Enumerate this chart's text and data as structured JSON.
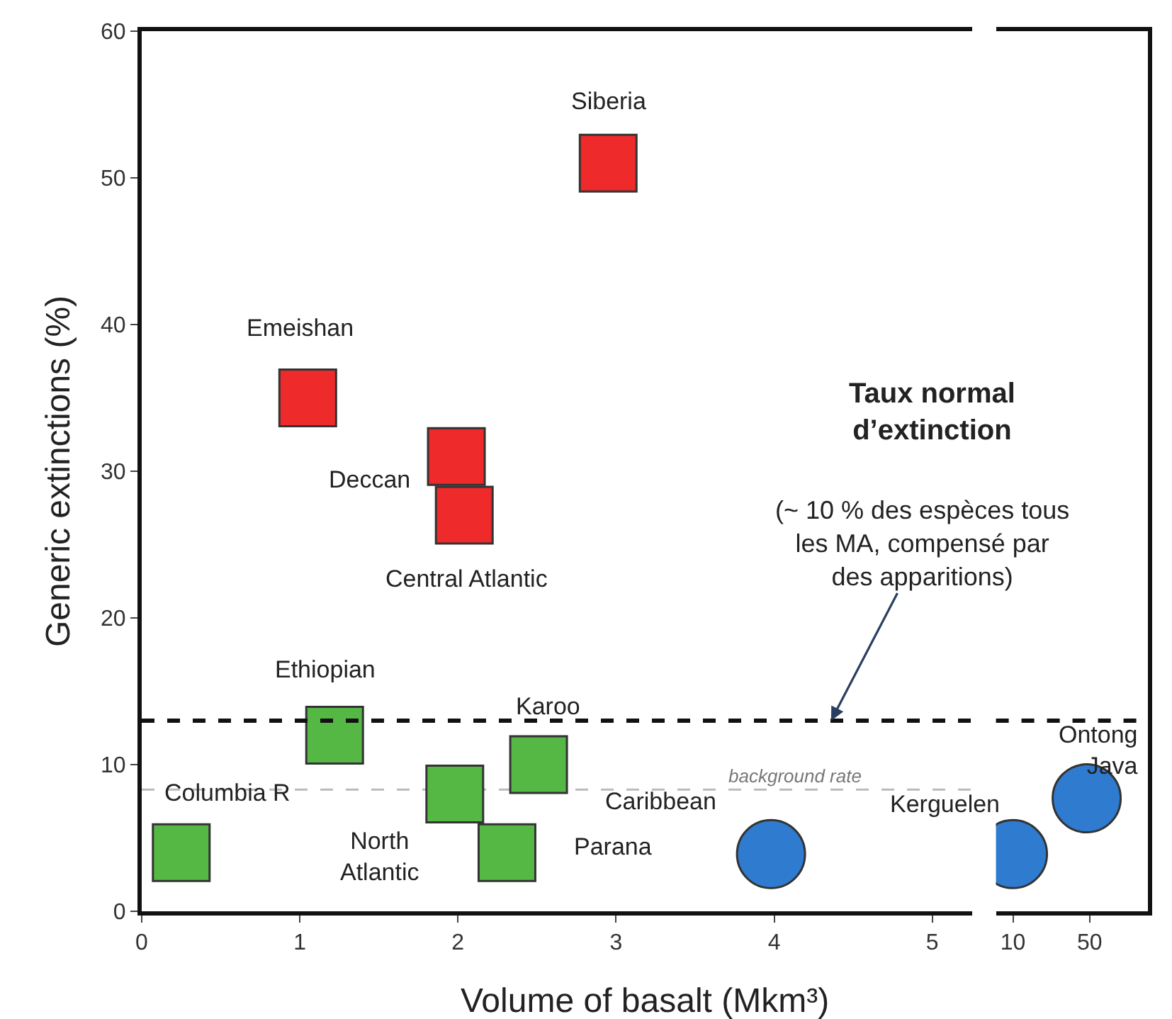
{
  "chart_data": [
    {
      "type": "scatter",
      "xlabel": "Volume of basalt (Mkm³)",
      "ylabel": "Generic extinctions (%)",
      "series": [
        {
          "color": "#ee2a2a",
          "marker": "square",
          "x": [
            2.95,
            1.05,
            1.99,
            2.04
          ],
          "values": [
            51,
            35,
            31,
            27
          ]
        },
        {
          "color": "#55b845",
          "marker": "square",
          "x": [
            1.22,
            0.25,
            1.98,
            2.51,
            2.31
          ],
          "values": [
            12,
            4,
            8,
            10,
            4
          ]
        },
        {
          "color": "#2f7bcf",
          "marker": "circle",
          "x": [
            3.98
          ],
          "values": [
            3.9
          ]
        }
      ],
      "xlim": [
        0,
        5.25
      ],
      "xticks": [
        0,
        1,
        2,
        3,
        4,
        5
      ],
      "ylim": [
        0,
        60
      ],
      "yticks": [
        0,
        10,
        20,
        30,
        40,
        50,
        60
      ],
      "ref_lines": [
        {
          "axis": "y",
          "value": 13,
          "color": "#111111",
          "line_style": "dashed"
        },
        {
          "axis": "y",
          "value": 8.3,
          "label": "background rate",
          "color": "#bbbbbb",
          "line_style": "dashed"
        }
      ],
      "annotations": [
        "Taux normal\nd’extinction",
        {
          "text": "(~ 10 % des espèces tous\nles MA, compensé par\ndes apparitions)",
          "x": 4.36,
          "y": 13
        },
        {
          "text": "Siberia",
          "x": 2.95,
          "y": 51
        },
        {
          "text": "Emeishan",
          "x": 1.05,
          "y": 35
        },
        {
          "text": "Deccan",
          "x": 1.99,
          "y": 31
        },
        {
          "text": "Central Atlantic",
          "x": 2.04,
          "y": 27
        },
        {
          "text": "Ethiopian",
          "x": 1.22,
          "y": 12
        },
        {
          "text": "Karoo",
          "x": 2.51,
          "y": 10
        },
        {
          "text": "Columbia R",
          "x": 0.25,
          "y": 4
        },
        {
          "text": "North\nAtlantic",
          "x": 1.98,
          "y": 8
        },
        {
          "text": "Caribbean",
          "x": 3.98,
          "y": 3.9
        },
        {
          "text": "Parana",
          "x": 2.31,
          "y": 4
        }
      ]
    },
    {
      "type": "scatter",
      "series": [
        {
          "color": "#2f7bcf",
          "marker": "circle",
          "x": [
            10,
            47
          ],
          "values": [
            3.9,
            7.7
          ]
        }
      ],
      "log": "x",
      "xlim": [
        7,
        170
      ],
      "xticks": [
        10,
        50
      ],
      "ylim": [
        0,
        60
      ],
      "yticks": [
        0,
        10,
        20,
        30,
        40,
        50,
        60
      ],
      "tick_labels": "x",
      "ref_lines": [
        {
          "axis": "y",
          "value": 13,
          "color": "#111111",
          "line_style": "dashed"
        }
      ],
      "annotations": [
        {
          "text": "Kerguelen",
          "x": 10,
          "y": 3.9
        },
        {
          "text": "Ontong\nJava",
          "x": 47,
          "y": 7.7
        }
      ]
    }
  ]
}
